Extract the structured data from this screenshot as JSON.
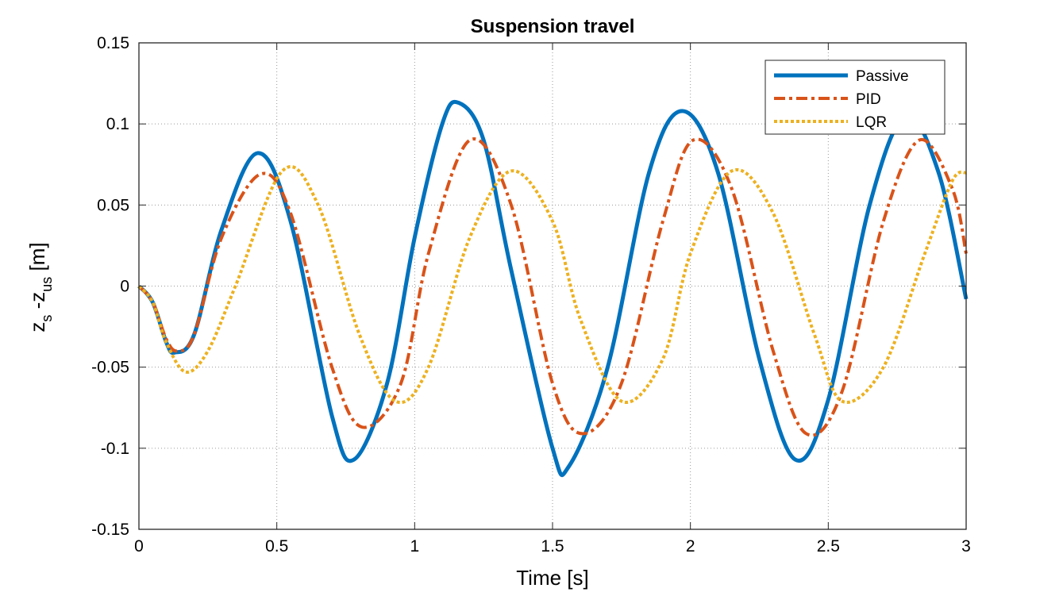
{
  "chart_data": {
    "type": "line",
    "title": "Suspension travel",
    "xlabel": "Time [s]",
    "ylabel_parts": [
      "z",
      "s",
      " -z",
      "us",
      " [m]"
    ],
    "xlim": [
      0,
      3
    ],
    "ylim": [
      -0.15,
      0.15
    ],
    "xticks": [
      0,
      0.5,
      1,
      1.5,
      2,
      2.5,
      3
    ],
    "xtick_labels": [
      "0",
      "0.5",
      "1",
      "1.5",
      "2",
      "2.5",
      "3"
    ],
    "yticks": [
      -0.15,
      -0.1,
      -0.05,
      0,
      0.05,
      0.1,
      0.15
    ],
    "ytick_labels": [
      "-0.15",
      "-0.1",
      "-0.05",
      "0",
      "0.05",
      "0.1",
      "0.15"
    ],
    "grid": true,
    "legend_position": "top-right",
    "series": [
      {
        "name": "Passive",
        "color": "#0072BD",
        "style": "solid",
        "x": [
          0,
          0.05,
          0.1,
          0.13,
          0.2,
          0.3,
          0.43,
          0.55,
          0.7,
          0.78,
          0.9,
          1.0,
          1.1,
          1.16,
          1.25,
          1.35,
          1.5,
          1.56,
          1.7,
          1.85,
          1.97,
          2.1,
          2.25,
          2.38,
          2.5,
          2.65,
          2.78,
          2.9,
          3.0
        ],
        "y": [
          0,
          -0.01,
          -0.035,
          -0.041,
          -0.03,
          0.035,
          0.082,
          0.04,
          -0.08,
          -0.107,
          -0.06,
          0.03,
          0.1,
          0.113,
          0.09,
          0.01,
          -0.1,
          -0.111,
          -0.05,
          0.07,
          0.108,
          0.07,
          -0.045,
          -0.107,
          -0.07,
          0.05,
          0.105,
          0.07,
          -0.008
        ]
      },
      {
        "name": "PID",
        "color": "#D95319",
        "style": "dashdot",
        "x": [
          0,
          0.05,
          0.1,
          0.14,
          0.2,
          0.3,
          0.44,
          0.55,
          0.7,
          0.81,
          0.95,
          1.05,
          1.2,
          1.35,
          1.5,
          1.61,
          1.75,
          1.9,
          2.01,
          2.15,
          2.3,
          2.42,
          2.55,
          2.7,
          2.83,
          2.95,
          3.0
        ],
        "y": [
          0,
          -0.01,
          -0.033,
          -0.04,
          -0.03,
          0.03,
          0.069,
          0.045,
          -0.05,
          -0.087,
          -0.06,
          0.02,
          0.09,
          0.05,
          -0.06,
          -0.091,
          -0.06,
          0.04,
          0.09,
          0.06,
          -0.04,
          -0.091,
          -0.065,
          0.04,
          0.09,
          0.06,
          0.02
        ]
      },
      {
        "name": "LQR",
        "color": "#EDB120",
        "style": "dotted",
        "x": [
          0,
          0.05,
          0.1,
          0.17,
          0.25,
          0.35,
          0.52,
          0.65,
          0.8,
          0.93,
          1.05,
          1.2,
          1.35,
          1.5,
          1.6,
          1.75,
          1.9,
          2.0,
          2.15,
          2.3,
          2.45,
          2.55,
          2.7,
          2.85,
          2.95,
          3.0
        ],
        "y": [
          0,
          -0.01,
          -0.035,
          -0.053,
          -0.04,
          0.0,
          0.071,
          0.05,
          -0.03,
          -0.071,
          -0.05,
          0.03,
          0.071,
          0.04,
          -0.02,
          -0.071,
          -0.045,
          0.02,
          0.071,
          0.045,
          -0.03,
          -0.071,
          -0.05,
          0.02,
          0.065,
          0.07
        ]
      }
    ]
  }
}
